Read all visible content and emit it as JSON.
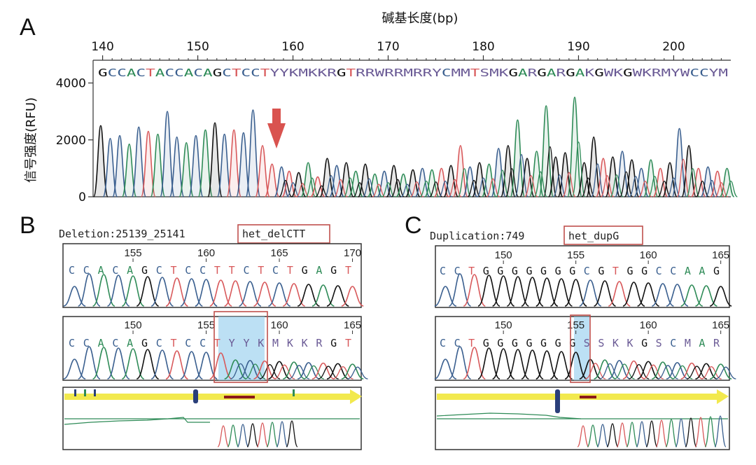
{
  "colors": {
    "A": "#2e8b57",
    "C": "#3a5f8f",
    "G": "#111111",
    "T": "#d8595b",
    "IUPAC": "#6a5a95",
    "arrow": "#d9534f",
    "box": "#c0504d",
    "highlight": "#9fd3ef",
    "track": "#f2e94e"
  },
  "panels": {
    "a": {
      "letter": "A",
      "xlabel": "碱基长度(bp)",
      "ylabel": "信号强度(RFU)",
      "x_ticks": [
        "140",
        "150",
        "160",
        "170",
        "180",
        "190",
        "200"
      ],
      "y_ticks": [
        "0",
        "2000",
        "4000"
      ],
      "sequence": "GCCACTACCACAGCTCCTYYKMKKRGTRRWRRMRRYCMMTSMKGARGARGAKGWKGWKRMYWCCYM"
    },
    "b": {
      "letter": "B",
      "label_prefix": "Deletion:25139_25141",
      "label_box": "het_delCTT",
      "top_positions": [
        "155",
        "160",
        "165",
        "170"
      ],
      "top_sequence": "CCACAGCTCCTTCTCTGAGT",
      "bottom_positions": [
        "150",
        "155",
        "160",
        "165"
      ],
      "bottom_sequence": "CCACAGCTCCTYYKMKKRGT"
    },
    "c": {
      "letter": "C",
      "label_prefix": "Duplication:749",
      "label_box": "het_dupG",
      "top_positions": [
        "150",
        "155",
        "160",
        "165"
      ],
      "top_sequence": "CCTGGGGGGGCGTGGCCAAG",
      "bottom_positions": [
        "150",
        "155",
        "160",
        "165"
      ],
      "bottom_sequence": "CCTGGGGGGGSSKKGSCMAR"
    }
  },
  "chart_data": [
    {
      "type": "line",
      "panel": "A",
      "xlabel": "碱基长度(bp)",
      "ylabel": "信号强度(RFU)",
      "xlim": [
        139,
        206
      ],
      "ylim": [
        0,
        4800
      ],
      "x_ticks": [
        140,
        150,
        160,
        170,
        180,
        190,
        200
      ],
      "y_ticks": [
        0,
        2000,
        4000
      ],
      "annotation": "red arrow at ~158 bp marking onset of mixed peaks",
      "peaks": [
        {
          "x": 139.8,
          "base": "G",
          "h": 2500
        },
        {
          "x": 140.8,
          "base": "C",
          "h": 2050
        },
        {
          "x": 141.8,
          "base": "C",
          "h": 2150
        },
        {
          "x": 142.8,
          "base": "A",
          "h": 1850
        },
        {
          "x": 143.8,
          "base": "C",
          "h": 2450
        },
        {
          "x": 144.8,
          "base": "T",
          "h": 2300
        },
        {
          "x": 145.8,
          "base": "A",
          "h": 2200
        },
        {
          "x": 146.8,
          "base": "C",
          "h": 3000
        },
        {
          "x": 147.8,
          "base": "C",
          "h": 2100
        },
        {
          "x": 148.8,
          "base": "A",
          "h": 1900
        },
        {
          "x": 149.8,
          "base": "C",
          "h": 2150
        },
        {
          "x": 150.8,
          "base": "A",
          "h": 2350
        },
        {
          "x": 151.8,
          "base": "G",
          "h": 2600
        },
        {
          "x": 152.8,
          "base": "C",
          "h": 2200
        },
        {
          "x": 153.8,
          "base": "T",
          "h": 2350
        },
        {
          "x": 154.8,
          "base": "C",
          "h": 2250
        },
        {
          "x": 155.8,
          "base": "C",
          "h": 3050
        },
        {
          "x": 156.8,
          "base": "T",
          "h": 1800
        },
        {
          "x": 157.8,
          "base": "T",
          "h": 1150
        },
        {
          "x": 158.8,
          "base": "C",
          "h": 1050
        },
        {
          "x": 159.6,
          "base": "T",
          "h": 900
        },
        {
          "x": 160.6,
          "base": "G",
          "h": 850
        },
        {
          "x": 161.6,
          "base": "A",
          "h": 1200
        },
        {
          "x": 162.6,
          "base": "T",
          "h": 700
        },
        {
          "x": 163.6,
          "base": "G",
          "h": 1350
        },
        {
          "x": 164.6,
          "base": "C",
          "h": 1100
        },
        {
          "x": 165.6,
          "base": "G",
          "h": 1200
        },
        {
          "x": 166.6,
          "base": "A",
          "h": 900
        },
        {
          "x": 167.6,
          "base": "G",
          "h": 1150
        },
        {
          "x": 168.6,
          "base": "A",
          "h": 800
        },
        {
          "x": 169.6,
          "base": "C",
          "h": 900
        },
        {
          "x": 170.6,
          "base": "G",
          "h": 1100
        },
        {
          "x": 171.6,
          "base": "A",
          "h": 800
        },
        {
          "x": 172.6,
          "base": "G",
          "h": 950
        },
        {
          "x": 173.6,
          "base": "C",
          "h": 1000
        },
        {
          "x": 174.6,
          "base": "A",
          "h": 950
        },
        {
          "x": 175.6,
          "base": "T",
          "h": 1000
        },
        {
          "x": 176.6,
          "base": "G",
          "h": 1100
        },
        {
          "x": 177.6,
          "base": "T",
          "h": 1800
        },
        {
          "x": 178.6,
          "base": "C",
          "h": 1050
        },
        {
          "x": 179.6,
          "base": "G",
          "h": 1200
        },
        {
          "x": 180.6,
          "base": "A",
          "h": 1150
        },
        {
          "x": 181.6,
          "base": "C",
          "h": 1700
        },
        {
          "x": 182.6,
          "base": "G",
          "h": 1800
        },
        {
          "x": 183.6,
          "base": "A",
          "h": 2700
        },
        {
          "x": 184.6,
          "base": "G",
          "h": 1350
        },
        {
          "x": 185.6,
          "base": "A",
          "h": 1600
        },
        {
          "x": 186.6,
          "base": "A",
          "h": 3200
        },
        {
          "x": 187.6,
          "base": "G",
          "h": 1400
        },
        {
          "x": 188.6,
          "base": "G",
          "h": 1550
        },
        {
          "x": 189.6,
          "base": "A",
          "h": 3500
        },
        {
          "x": 190.6,
          "base": "G",
          "h": 1200
        },
        {
          "x": 191.6,
          "base": "G",
          "h": 2100
        },
        {
          "x": 192.6,
          "base": "T",
          "h": 1350
        },
        {
          "x": 193.6,
          "base": "G",
          "h": 1400
        },
        {
          "x": 194.6,
          "base": "C",
          "h": 1600
        },
        {
          "x": 195.6,
          "base": "G",
          "h": 1300
        },
        {
          "x": 196.6,
          "base": "C",
          "h": 1000
        },
        {
          "x": 197.6,
          "base": "A",
          "h": 1300
        },
        {
          "x": 198.6,
          "base": "T",
          "h": 1000
        },
        {
          "x": 199.6,
          "base": "G",
          "h": 1200
        },
        {
          "x": 200.6,
          "base": "C",
          "h": 2400
        },
        {
          "x": 201.6,
          "base": "G",
          "h": 1800
        },
        {
          "x": 202.6,
          "base": "T",
          "h": 1000
        },
        {
          "x": 203.6,
          "base": "C",
          "h": 1050
        },
        {
          "x": 204.6,
          "base": "T",
          "h": 900
        },
        {
          "x": 205.6,
          "base": "A",
          "h": 1000
        }
      ]
    },
    {
      "type": "line",
      "panel": "B",
      "tracks": [
        {
          "sequence": "CCACAGCTCCTTCTCTGAGT",
          "positions": [
            155,
            160,
            165,
            170
          ]
        },
        {
          "sequence": "CCACAGCTCCTYYKMKKRGT",
          "positions": [
            150,
            155,
            160,
            165
          ],
          "highlight": "YYK"
        }
      ]
    },
    {
      "type": "line",
      "panel": "C",
      "tracks": [
        {
          "sequence": "CCTGGGGGGGCGTGGCCAAG",
          "positions": [
            150,
            155,
            160,
            165
          ]
        },
        {
          "sequence": "CCTGGGGGGGSSKKGSCMAR",
          "positions": [
            150,
            155,
            160,
            165
          ],
          "highlight": "G"
        }
      ]
    }
  ]
}
